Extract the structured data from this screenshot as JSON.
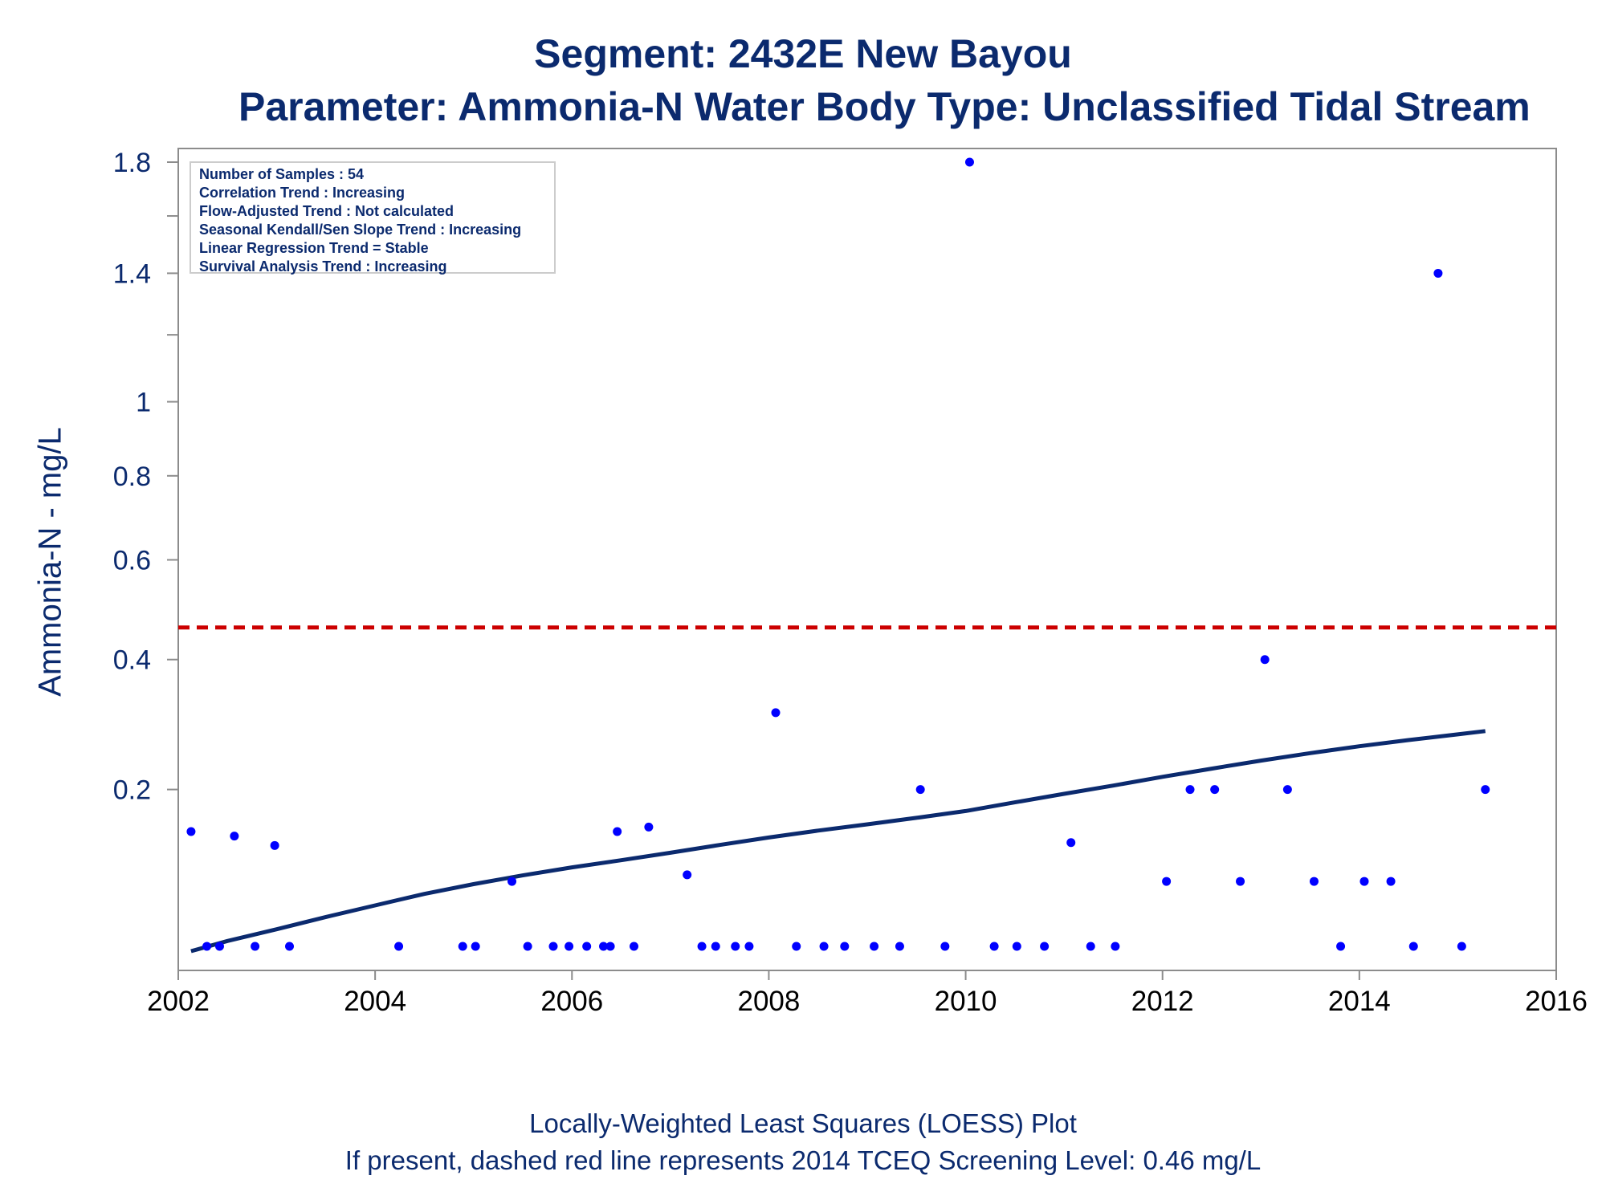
{
  "titles": {
    "line1": "Segment: 2432E  New Bayou",
    "line2": "Parameter: Ammonia-N   Water Body Type: Unclassified Tidal Stream"
  },
  "footnotes": {
    "line1": "Locally-Weighted Least Squares (LOESS) Plot",
    "line2": "If present, dashed red line represents 2014 TCEQ Screening Level: 0.46 mg/L"
  },
  "stats_box": [
    "Number of Samples : 54",
    "Correlation Trend : Increasing",
    "Flow-Adjusted Trend : Not calculated",
    "Seasonal Kendall/Sen Slope Trend : Increasing",
    "Linear Regression Trend = Stable",
    "Survival Analysis Trend : Increasing"
  ],
  "colors": {
    "text": "#0b2a6e",
    "points": "#0000ff",
    "loess": "#0b2a6e",
    "screening": "#cc0000",
    "axis": "#8c8c8c",
    "tick_text_x": "#000000"
  },
  "chart_data": {
    "type": "scatter",
    "ylabel": "Ammonia-N - mg/L",
    "xlabel": "",
    "y_scale": "sqrt",
    "xlim": [
      2002.0,
      2016.0
    ],
    "ylim": [
      0.05,
      1.8
    ],
    "x_ticks": [
      2002,
      2004,
      2006,
      2008,
      2010,
      2012,
      2014,
      2016
    ],
    "y_ticks": [
      0.2,
      0.4,
      0.6,
      0.8,
      1,
      1.4,
      1.8
    ],
    "y_tick_labels": [
      "0.2",
      "0.4",
      "0.6",
      "0.8",
      "1",
      "1.4",
      "1.8"
    ],
    "y_minor_ticks": [
      1.2,
      1.6
    ],
    "screening_level": 0.46,
    "points": [
      [
        2002.13,
        0.15
      ],
      [
        2002.29,
        0.05
      ],
      [
        2002.42,
        0.05
      ],
      [
        2002.57,
        0.145
      ],
      [
        2002.78,
        0.05
      ],
      [
        2002.98,
        0.135
      ],
      [
        2003.13,
        0.05
      ],
      [
        2004.24,
        0.05
      ],
      [
        2004.89,
        0.05
      ],
      [
        2005.02,
        0.05
      ],
      [
        2005.39,
        0.1
      ],
      [
        2005.55,
        0.05
      ],
      [
        2005.81,
        0.05
      ],
      [
        2005.97,
        0.05
      ],
      [
        2006.15,
        0.05
      ],
      [
        2006.32,
        0.05
      ],
      [
        2006.39,
        0.05
      ],
      [
        2006.46,
        0.15
      ],
      [
        2006.63,
        0.05
      ],
      [
        2006.78,
        0.155
      ],
      [
        2007.17,
        0.106
      ],
      [
        2007.32,
        0.05
      ],
      [
        2007.46,
        0.05
      ],
      [
        2007.66,
        0.05
      ],
      [
        2007.8,
        0.05
      ],
      [
        2008.07,
        0.31
      ],
      [
        2008.28,
        0.05
      ],
      [
        2008.56,
        0.05
      ],
      [
        2008.77,
        0.05
      ],
      [
        2009.07,
        0.05
      ],
      [
        2009.33,
        0.05
      ],
      [
        2009.54,
        0.2
      ],
      [
        2009.79,
        0.05
      ],
      [
        2010.04,
        1.8
      ],
      [
        2010.29,
        0.05
      ],
      [
        2010.52,
        0.05
      ],
      [
        2010.8,
        0.05
      ],
      [
        2011.07,
        0.138
      ],
      [
        2011.27,
        0.05
      ],
      [
        2011.52,
        0.05
      ],
      [
        2012.04,
        0.1
      ],
      [
        2012.28,
        0.2
      ],
      [
        2012.53,
        0.2
      ],
      [
        2012.79,
        0.1
      ],
      [
        2013.04,
        0.4
      ],
      [
        2013.27,
        0.2
      ],
      [
        2013.54,
        0.1
      ],
      [
        2013.81,
        0.05
      ],
      [
        2014.05,
        0.1
      ],
      [
        2014.32,
        0.1
      ],
      [
        2014.55,
        0.05
      ],
      [
        2014.8,
        1.4
      ],
      [
        2015.04,
        0.05
      ],
      [
        2015.28,
        0.2
      ]
    ],
    "loess": [
      [
        2002.13,
        0.047
      ],
      [
        2002.5,
        0.0535
      ],
      [
        2003.0,
        0.0615
      ],
      [
        2003.5,
        0.0705
      ],
      [
        2004.0,
        0.0795
      ],
      [
        2004.5,
        0.089
      ],
      [
        2005.0,
        0.0975
      ],
      [
        2005.5,
        0.1055
      ],
      [
        2006.0,
        0.113
      ],
      [
        2006.5,
        0.12
      ],
      [
        2007.0,
        0.1275
      ],
      [
        2007.5,
        0.1355
      ],
      [
        2008.0,
        0.1435
      ],
      [
        2008.5,
        0.151
      ],
      [
        2009.0,
        0.158
      ],
      [
        2009.5,
        0.1655
      ],
      [
        2010.0,
        0.1735
      ],
      [
        2010.5,
        0.184
      ],
      [
        2011.0,
        0.1945
      ],
      [
        2011.5,
        0.205
      ],
      [
        2012.0,
        0.2165
      ],
      [
        2012.5,
        0.2275
      ],
      [
        2013.0,
        0.2385
      ],
      [
        2013.5,
        0.249
      ],
      [
        2014.0,
        0.259
      ],
      [
        2014.5,
        0.268
      ],
      [
        2015.0,
        0.2765
      ],
      [
        2015.28,
        0.2815
      ]
    ]
  }
}
